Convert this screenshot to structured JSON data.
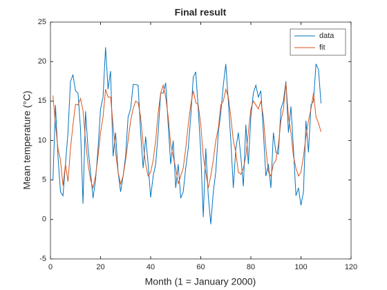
{
  "chart_data": {
    "type": "line",
    "title": "Final result",
    "x_label": "Month (1 = January 2000)",
    "y_label": "Mean temperature (°C)",
    "x": [
      1,
      2,
      3,
      4,
      5,
      6,
      7,
      8,
      9,
      10,
      11,
      12,
      13,
      14,
      15,
      16,
      17,
      18,
      19,
      20,
      21,
      22,
      23,
      24,
      25,
      26,
      27,
      28,
      29,
      30,
      31,
      32,
      33,
      34,
      35,
      36,
      37,
      38,
      39,
      40,
      41,
      42,
      43,
      44,
      45,
      46,
      47,
      48,
      49,
      50,
      51,
      52,
      53,
      54,
      55,
      56,
      57,
      58,
      59,
      60,
      61,
      62,
      63,
      64,
      65,
      66,
      67,
      68,
      69,
      70,
      71,
      72,
      73,
      74,
      75,
      76,
      77,
      78,
      79,
      80,
      81,
      82,
      83,
      84,
      85,
      86,
      87,
      88,
      89,
      90,
      91,
      92,
      93,
      94,
      95,
      96,
      97,
      98,
      99,
      100,
      101,
      102,
      103,
      104,
      105,
      106,
      107,
      108
    ],
    "series": [
      {
        "name": "data",
        "color": "#0072BD",
        "values": [
          5,
          14.5,
          8,
          3.5,
          3,
          7,
          11,
          17.5,
          18.3,
          16.3,
          16,
          11.5,
          2,
          13.7,
          9,
          6,
          2.7,
          5,
          9,
          14,
          15.5,
          21.8,
          16.5,
          18.8,
          8,
          11,
          6,
          3.5,
          5.5,
          8,
          13,
          14,
          17.1,
          17.1,
          17,
          11,
          6.5,
          10.5,
          7,
          2.8,
          5.5,
          7,
          11,
          16,
          16,
          17.3,
          12,
          7,
          10,
          4,
          7,
          2.7,
          3.5,
          6.5,
          9,
          13,
          18,
          18.7,
          14,
          8.5,
          0.3,
          9,
          3,
          -0.6,
          3.5,
          6,
          11,
          13.5,
          17,
          19.7,
          15,
          10,
          4,
          9,
          11,
          8,
          4.2,
          12,
          7,
          13,
          16,
          17,
          15.5,
          16.3,
          11,
          5.5,
          7,
          4,
          11,
          8.5,
          8.3,
          14,
          15,
          17.5,
          11,
          14.3,
          9,
          3,
          4,
          1.8,
          3.5,
          12.5,
          8.5,
          14.5,
          15,
          19.7,
          19,
          14.7
        ]
      },
      {
        "name": "fit",
        "color": "#D95319",
        "values": [
          15.7,
          12,
          9,
          7.5,
          4.3,
          7,
          4.8,
          9,
          12,
          14.6,
          14.5,
          15.3,
          13.8,
          10,
          7,
          5,
          4,
          5.5,
          8,
          11,
          13,
          16.5,
          15.5,
          15.5,
          12,
          8.5,
          6,
          4.5,
          5.5,
          7.5,
          10,
          12.5,
          14,
          15,
          14.8,
          13,
          9.5,
          7,
          5.5,
          6,
          7.5,
          10,
          13.5,
          16,
          17,
          15.5,
          13,
          9.5,
          8,
          6.5,
          4.5,
          5.5,
          6.5,
          9,
          12,
          14.5,
          16.3,
          14.8,
          14.5,
          12,
          8,
          6,
          4,
          5.5,
          7.5,
          10,
          11.5,
          14.5,
          15,
          16.5,
          15.5,
          13,
          10,
          8.5,
          6,
          5.7,
          6.5,
          8,
          11,
          14,
          15,
          14.5,
          14,
          15,
          13,
          9,
          6,
          5.5,
          7,
          7.5,
          9.5,
          12.5,
          14,
          17.3,
          13,
          11,
          8,
          6.5,
          5.5,
          6,
          8,
          10.5,
          12.5,
          14,
          16,
          13,
          12.2,
          11.1
        ]
      }
    ],
    "xlim": [
      0,
      120
    ],
    "xticks": [
      0,
      20,
      40,
      60,
      80,
      100,
      120
    ],
    "ylim": [
      -5,
      25
    ],
    "yticks": [
      -5,
      0,
      5,
      10,
      15,
      20,
      25
    ],
    "legend": "northeast"
  }
}
